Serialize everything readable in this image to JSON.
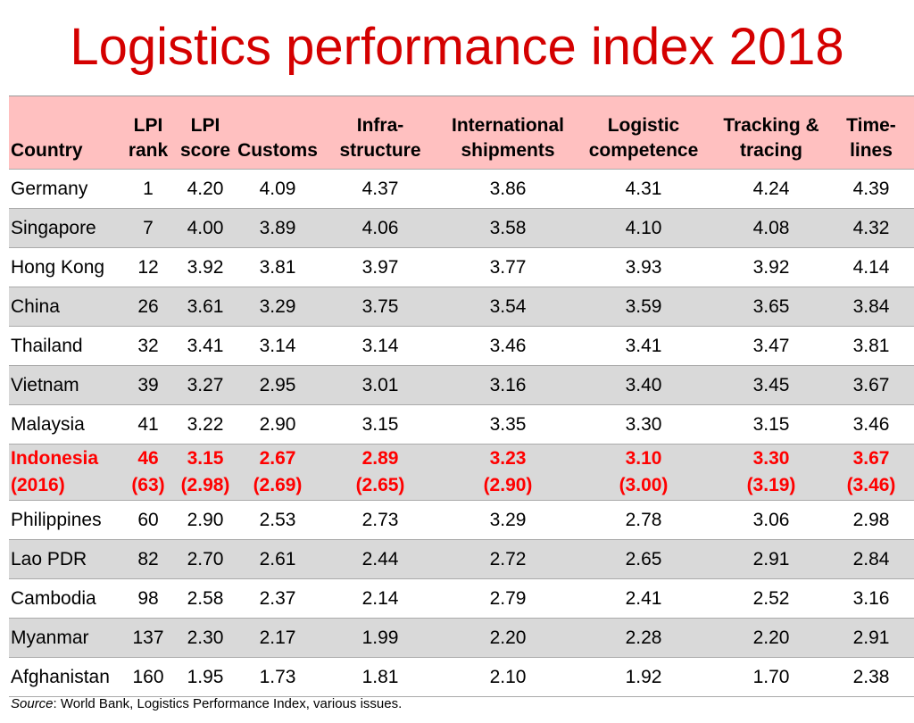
{
  "title": "Logistics performance index 2018",
  "headers": [
    [
      "",
      "Country"
    ],
    [
      "LPI",
      "rank"
    ],
    [
      "LPI",
      "score"
    ],
    [
      "",
      "Customs"
    ],
    [
      "Infra-",
      "structure"
    ],
    [
      "International",
      "shipments"
    ],
    [
      "Logistic",
      "competence"
    ],
    [
      "Tracking &",
      "tracing"
    ],
    [
      "Time-",
      "lines"
    ]
  ],
  "rows": [
    {
      "cells": [
        "Germany",
        "1",
        "4.20",
        "4.09",
        "4.37",
        "3.86",
        "4.31",
        "4.24",
        "4.39"
      ]
    },
    {
      "cells": [
        "Singapore",
        "7",
        "4.00",
        "3.89",
        "4.06",
        "3.58",
        "4.10",
        "4.08",
        "4.32"
      ]
    },
    {
      "cells": [
        "Hong Kong",
        "12",
        "3.92",
        "3.81",
        "3.97",
        "3.77",
        "3.93",
        "3.92",
        "4.14"
      ]
    },
    {
      "cells": [
        "China",
        "26",
        "3.61",
        "3.29",
        "3.75",
        "3.54",
        "3.59",
        "3.65",
        "3.84"
      ]
    },
    {
      "cells": [
        "Thailand",
        "32",
        "3.41",
        "3.14",
        "3.14",
        "3.46",
        "3.41",
        "3.47",
        "3.81"
      ]
    },
    {
      "cells": [
        "Vietnam",
        "39",
        "3.27",
        "2.95",
        "3.01",
        "3.16",
        "3.40",
        "3.45",
        "3.67"
      ]
    },
    {
      "cells": [
        "Malaysia",
        "41",
        "3.22",
        "2.90",
        "3.15",
        "3.35",
        "3.30",
        "3.15",
        "3.46"
      ]
    },
    {
      "cells": [
        "Indonesia",
        "46",
        "3.15",
        "2.67",
        "2.89",
        "3.23",
        "3.10",
        "3.30",
        "3.67"
      ],
      "cells2016": [
        "(2016)",
        "(63)",
        "(2.98)",
        "(2.69)",
        "(2.65)",
        "(2.90)",
        "(3.00)",
        "(3.19)",
        "(3.46)"
      ],
      "highlight": true
    },
    {
      "cells": [
        "Philippines",
        "60",
        "2.90",
        "2.53",
        "2.73",
        "3.29",
        "2.78",
        "3.06",
        "2.98"
      ]
    },
    {
      "cells": [
        "Lao PDR",
        "82",
        "2.70",
        "2.61",
        "2.44",
        "2.72",
        "2.65",
        "2.91",
        "2.84"
      ]
    },
    {
      "cells": [
        "Cambodia",
        "98",
        "2.58",
        "2.37",
        "2.14",
        "2.79",
        "2.41",
        "2.52",
        "3.16"
      ]
    },
    {
      "cells": [
        "Myanmar",
        "137",
        "2.30",
        "2.17",
        "1.99",
        "2.20",
        "2.28",
        "2.20",
        "2.91"
      ]
    },
    {
      "cells": [
        "Afghanistan",
        "160",
        "1.95",
        "1.73",
        "1.81",
        "2.10",
        "1.92",
        "1.70",
        "2.38"
      ]
    }
  ],
  "source": {
    "label": "Source",
    "text": ": World Bank, Logistics Performance Index, various issues."
  },
  "colors": {
    "title": "#d40000",
    "header_bg": "#ffc0c0",
    "stripe": "#d9d9d9",
    "highlight_text": "#ff0000"
  }
}
